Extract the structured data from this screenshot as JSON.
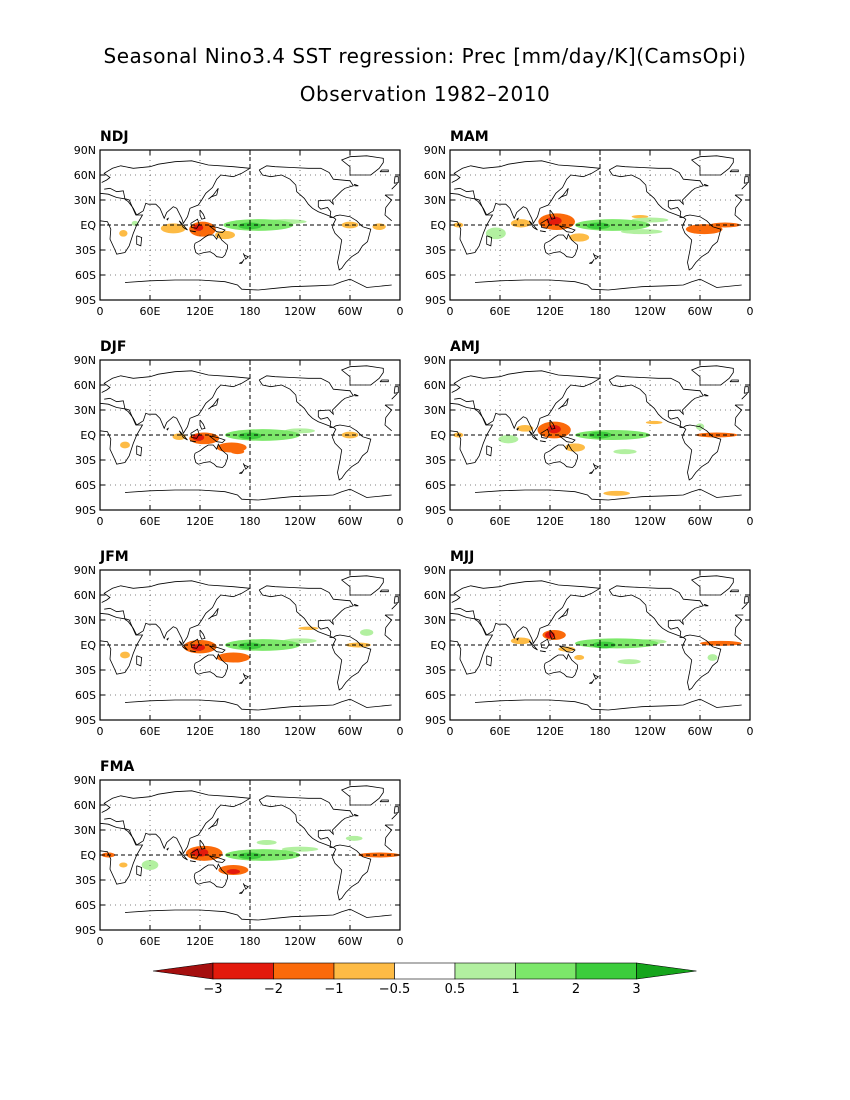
{
  "title": "Seasonal Nino3.4 SST regression: Prec [mm/day/K](CamsOpi)",
  "subtitle": "Observation 1982–2010",
  "colors": {
    "c_lt_m3": "#a50f0f",
    "c_m3_m2": "#e31a0c",
    "c_m2_m1": "#fb6a0a",
    "c_m1_m05": "#fdbb45",
    "c_p05_1": "#b2f0a0",
    "c_1_2": "#7ce86a",
    "c_2_3": "#3ccd3c",
    "c_gt_3": "#16a51c",
    "coast": "#000000"
  },
  "colorbar": {
    "levels": [
      -3,
      -2,
      -1,
      -0.5,
      0.5,
      1,
      2,
      3
    ],
    "labels": [
      "−3",
      "−2",
      "−1",
      "−0.5",
      "0.5",
      "1",
      "2",
      "3"
    ]
  },
  "chart_data": [
    {
      "type": "heatmap",
      "title": "NDJ",
      "x_ticks": [
        "0",
        "60E",
        "120E",
        "180",
        "120W",
        "60W",
        "0"
      ],
      "y_ticks": [
        "90N",
        "60N",
        "30N",
        "EQ",
        "30S",
        "60S",
        "90S"
      ],
      "xlim": [
        0,
        360
      ],
      "ylim": [
        -90,
        90
      ],
      "features": [
        {
          "lon": 190,
          "lat": 0,
          "rx": 42,
          "ry": 7,
          "v": 1.6
        },
        {
          "lon": 180,
          "lat": -1,
          "rx": 14,
          "ry": 4,
          "v": 2.4
        },
        {
          "lon": 222,
          "lat": 4,
          "rx": 26,
          "ry": 3,
          "v": 0.7
        },
        {
          "lon": 88,
          "lat": -4,
          "rx": 15,
          "ry": 6,
          "v": -0.8
        },
        {
          "lon": 123,
          "lat": -5,
          "rx": 16,
          "ry": 9,
          "v": -1.5
        },
        {
          "lon": 118,
          "lat": -3,
          "rx": 6,
          "ry": 4,
          "v": -2.2
        },
        {
          "lon": 150,
          "lat": -12,
          "rx": 12,
          "ry": 5,
          "v": -0.8
        },
        {
          "lon": 300,
          "lat": 0,
          "rx": 10,
          "ry": 4,
          "v": -0.7
        },
        {
          "lon": 335,
          "lat": -2,
          "rx": 8,
          "ry": 4,
          "v": -0.7
        },
        {
          "lon": 28,
          "lat": -10,
          "rx": 5,
          "ry": 4,
          "v": -0.6
        },
        {
          "lon": 42,
          "lat": 2,
          "rx": 4,
          "ry": 3,
          "v": 0.6
        }
      ]
    },
    {
      "type": "heatmap",
      "title": "MAM",
      "x_ticks": [
        "0",
        "60E",
        "120E",
        "180",
        "120W",
        "60W",
        "0"
      ],
      "y_ticks": [
        "90N",
        "60N",
        "30N",
        "EQ",
        "30S",
        "60S",
        "90S"
      ],
      "xlim": [
        0,
        360
      ],
      "ylim": [
        -90,
        90
      ],
      "features": [
        {
          "lon": 195,
          "lat": 0,
          "rx": 45,
          "ry": 7,
          "v": 1.6
        },
        {
          "lon": 178,
          "lat": -1,
          "rx": 14,
          "ry": 4,
          "v": 2.5
        },
        {
          "lon": 240,
          "lat": 6,
          "rx": 22,
          "ry": 3,
          "v": 0.7
        },
        {
          "lon": 230,
          "lat": -8,
          "rx": 25,
          "ry": 3,
          "v": 0.7
        },
        {
          "lon": 55,
          "lat": -10,
          "rx": 12,
          "ry": 7,
          "v": 0.7
        },
        {
          "lon": 128,
          "lat": 4,
          "rx": 22,
          "ry": 10,
          "v": -1.5
        },
        {
          "lon": 125,
          "lat": 5,
          "rx": 9,
          "ry": 5,
          "v": -2.5
        },
        {
          "lon": 85,
          "lat": 2,
          "rx": 12,
          "ry": 5,
          "v": -0.8
        },
        {
          "lon": 155,
          "lat": -15,
          "rx": 12,
          "ry": 5,
          "v": -0.8
        },
        {
          "lon": 305,
          "lat": -5,
          "rx": 22,
          "ry": 6,
          "v": -1.2
        },
        {
          "lon": 330,
          "lat": 0,
          "rx": 18,
          "ry": 3,
          "v": -1.0
        },
        {
          "lon": 228,
          "lat": 10,
          "rx": 10,
          "ry": 2,
          "v": -0.6
        },
        {
          "lon": 10,
          "lat": 0,
          "rx": 6,
          "ry": 3,
          "v": -0.6
        }
      ]
    },
    {
      "type": "heatmap",
      "title": "DJF",
      "x_ticks": [
        "0",
        "60E",
        "120E",
        "180",
        "120W",
        "60W",
        "0"
      ],
      "y_ticks": [
        "90N",
        "60N",
        "30N",
        "EQ",
        "30S",
        "60S",
        "90S"
      ],
      "xlim": [
        0,
        360
      ],
      "ylim": [
        -90,
        90
      ],
      "features": [
        {
          "lon": 195,
          "lat": 0,
          "rx": 45,
          "ry": 7,
          "v": 1.6
        },
        {
          "lon": 180,
          "lat": -1,
          "rx": 14,
          "ry": 4,
          "v": 2.5
        },
        {
          "lon": 240,
          "lat": 5,
          "rx": 18,
          "ry": 3,
          "v": 0.7
        },
        {
          "lon": 125,
          "lat": -4,
          "rx": 18,
          "ry": 7,
          "v": -1.5
        },
        {
          "lon": 118,
          "lat": -3,
          "rx": 7,
          "ry": 4,
          "v": -2.3
        },
        {
          "lon": 158,
          "lat": -15,
          "rx": 18,
          "ry": 6,
          "v": -1.0
        },
        {
          "lon": 165,
          "lat": -20,
          "rx": 8,
          "ry": 3,
          "v": -1.8
        },
        {
          "lon": 30,
          "lat": -12,
          "rx": 6,
          "ry": 4,
          "v": -0.7
        },
        {
          "lon": 300,
          "lat": 0,
          "rx": 10,
          "ry": 4,
          "v": -0.7
        },
        {
          "lon": 95,
          "lat": -2,
          "rx": 8,
          "ry": 4,
          "v": -0.7
        }
      ]
    },
    {
      "type": "heatmap",
      "title": "AMJ",
      "x_ticks": [
        "0",
        "60E",
        "120E",
        "180",
        "120W",
        "60W",
        "0"
      ],
      "y_ticks": [
        "90N",
        "60N",
        "30N",
        "EQ",
        "30S",
        "60S",
        "90S"
      ],
      "xlim": [
        0,
        360
      ],
      "ylim": [
        -90,
        90
      ],
      "features": [
        {
          "lon": 195,
          "lat": 0,
          "rx": 45,
          "ry": 6,
          "v": 1.6
        },
        {
          "lon": 180,
          "lat": 0,
          "rx": 14,
          "ry": 4,
          "v": 2.4
        },
        {
          "lon": 70,
          "lat": -5,
          "rx": 12,
          "ry": 5,
          "v": 0.7
        },
        {
          "lon": 210,
          "lat": -20,
          "rx": 14,
          "ry": 3,
          "v": 0.7
        },
        {
          "lon": 125,
          "lat": 6,
          "rx": 20,
          "ry": 10,
          "v": -1.5
        },
        {
          "lon": 125,
          "lat": 7,
          "rx": 8,
          "ry": 5,
          "v": -2.5
        },
        {
          "lon": 90,
          "lat": 8,
          "rx": 10,
          "ry": 4,
          "v": -0.8
        },
        {
          "lon": 150,
          "lat": -15,
          "rx": 12,
          "ry": 5,
          "v": -0.8
        },
        {
          "lon": 320,
          "lat": 0,
          "rx": 25,
          "ry": 3,
          "v": -1.2
        },
        {
          "lon": 200,
          "lat": -70,
          "rx": 16,
          "ry": 3,
          "v": -0.7
        },
        {
          "lon": 245,
          "lat": 15,
          "rx": 10,
          "ry": 2,
          "v": -0.6
        },
        {
          "lon": 10,
          "lat": 0,
          "rx": 6,
          "ry": 3,
          "v": -0.6
        },
        {
          "lon": 300,
          "lat": 10,
          "rx": 5,
          "ry": 4,
          "v": 0.6
        }
      ]
    },
    {
      "type": "heatmap",
      "title": "JFM",
      "x_ticks": [
        "0",
        "60E",
        "120E",
        "180",
        "120W",
        "60W",
        "0"
      ],
      "y_ticks": [
        "90N",
        "60N",
        "30N",
        "EQ",
        "30S",
        "60S",
        "90S"
      ],
      "xlim": [
        0,
        360
      ],
      "ylim": [
        -90,
        90
      ],
      "features": [
        {
          "lon": 195,
          "lat": 0,
          "rx": 45,
          "ry": 7,
          "v": 1.6
        },
        {
          "lon": 180,
          "lat": -1,
          "rx": 14,
          "ry": 4,
          "v": 2.6
        },
        {
          "lon": 240,
          "lat": 5,
          "rx": 20,
          "ry": 3,
          "v": 0.7
        },
        {
          "lon": 320,
          "lat": 15,
          "rx": 8,
          "ry": 4,
          "v": 0.7
        },
        {
          "lon": 120,
          "lat": -2,
          "rx": 20,
          "ry": 8,
          "v": -1.5
        },
        {
          "lon": 118,
          "lat": -3,
          "rx": 8,
          "ry": 4,
          "v": -2.5
        },
        {
          "lon": 160,
          "lat": -15,
          "rx": 20,
          "ry": 6,
          "v": -1.0
        },
        {
          "lon": 165,
          "lat": -18,
          "rx": 8,
          "ry": 3,
          "v": -1.8
        },
        {
          "lon": 30,
          "lat": -12,
          "rx": 6,
          "ry": 4,
          "v": -0.7
        },
        {
          "lon": 310,
          "lat": 0,
          "rx": 15,
          "ry": 3,
          "v": -0.7
        },
        {
          "lon": 250,
          "lat": 20,
          "rx": 12,
          "ry": 2,
          "v": -0.6
        }
      ]
    },
    {
      "type": "heatmap",
      "title": "MJJ",
      "x_ticks": [
        "0",
        "60E",
        "120E",
        "180",
        "120W",
        "60W",
        "0"
      ],
      "y_ticks": [
        "90N",
        "60N",
        "30N",
        "EQ",
        "30S",
        "60S",
        "90S"
      ],
      "xlim": [
        0,
        360
      ],
      "ylim": [
        -90,
        90
      ],
      "features": [
        {
          "lon": 200,
          "lat": 2,
          "rx": 50,
          "ry": 6,
          "v": 1.5
        },
        {
          "lon": 185,
          "lat": 0,
          "rx": 14,
          "ry": 4,
          "v": 2.3
        },
        {
          "lon": 240,
          "lat": 4,
          "rx": 20,
          "ry": 3,
          "v": 0.8
        },
        {
          "lon": 215,
          "lat": -20,
          "rx": 14,
          "ry": 3,
          "v": 0.7
        },
        {
          "lon": 125,
          "lat": 12,
          "rx": 14,
          "ry": 6,
          "v": -1.5
        },
        {
          "lon": 120,
          "lat": 12,
          "rx": 6,
          "ry": 4,
          "v": -2.3
        },
        {
          "lon": 85,
          "lat": 5,
          "rx": 12,
          "ry": 4,
          "v": -0.8
        },
        {
          "lon": 140,
          "lat": -5,
          "rx": 10,
          "ry": 3,
          "v": -0.8
        },
        {
          "lon": 325,
          "lat": 2,
          "rx": 25,
          "ry": 3,
          "v": -1.0
        },
        {
          "lon": 155,
          "lat": -15,
          "rx": 6,
          "ry": 3,
          "v": -0.7
        },
        {
          "lon": 315,
          "lat": -15,
          "rx": 6,
          "ry": 4,
          "v": 0.6
        }
      ]
    },
    {
      "type": "heatmap",
      "title": "FMA",
      "x_ticks": [
        "0",
        "60E",
        "120E",
        "180",
        "120W",
        "60W",
        "0"
      ],
      "y_ticks": [
        "90N",
        "60N",
        "30N",
        "EQ",
        "30S",
        "60S",
        "90S"
      ],
      "xlim": [
        0,
        360
      ],
      "ylim": [
        -90,
        90
      ],
      "features": [
        {
          "lon": 195,
          "lat": 0,
          "rx": 45,
          "ry": 7,
          "v": 1.6
        },
        {
          "lon": 180,
          "lat": -1,
          "rx": 14,
          "ry": 4,
          "v": 2.6
        },
        {
          "lon": 240,
          "lat": 7,
          "rx": 22,
          "ry": 3,
          "v": 0.7
        },
        {
          "lon": 200,
          "lat": 15,
          "rx": 12,
          "ry": 3,
          "v": 0.7
        },
        {
          "lon": 305,
          "lat": 20,
          "rx": 10,
          "ry": 3,
          "v": 0.6
        },
        {
          "lon": 60,
          "lat": -12,
          "rx": 10,
          "ry": 6,
          "v": 0.8
        },
        {
          "lon": 125,
          "lat": 2,
          "rx": 22,
          "ry": 9,
          "v": -1.5
        },
        {
          "lon": 120,
          "lat": 3,
          "rx": 10,
          "ry": 5,
          "v": -2.5
        },
        {
          "lon": 160,
          "lat": -18,
          "rx": 18,
          "ry": 6,
          "v": -1.2
        },
        {
          "lon": 160,
          "lat": -20,
          "rx": 8,
          "ry": 3,
          "v": -2.0
        },
        {
          "lon": 335,
          "lat": 0,
          "rx": 25,
          "ry": 3,
          "v": -1.2
        },
        {
          "lon": 10,
          "lat": 0,
          "rx": 8,
          "ry": 3,
          "v": -1.0
        },
        {
          "lon": 28,
          "lat": -12,
          "rx": 5,
          "ry": 3,
          "v": -0.6
        }
      ]
    }
  ]
}
